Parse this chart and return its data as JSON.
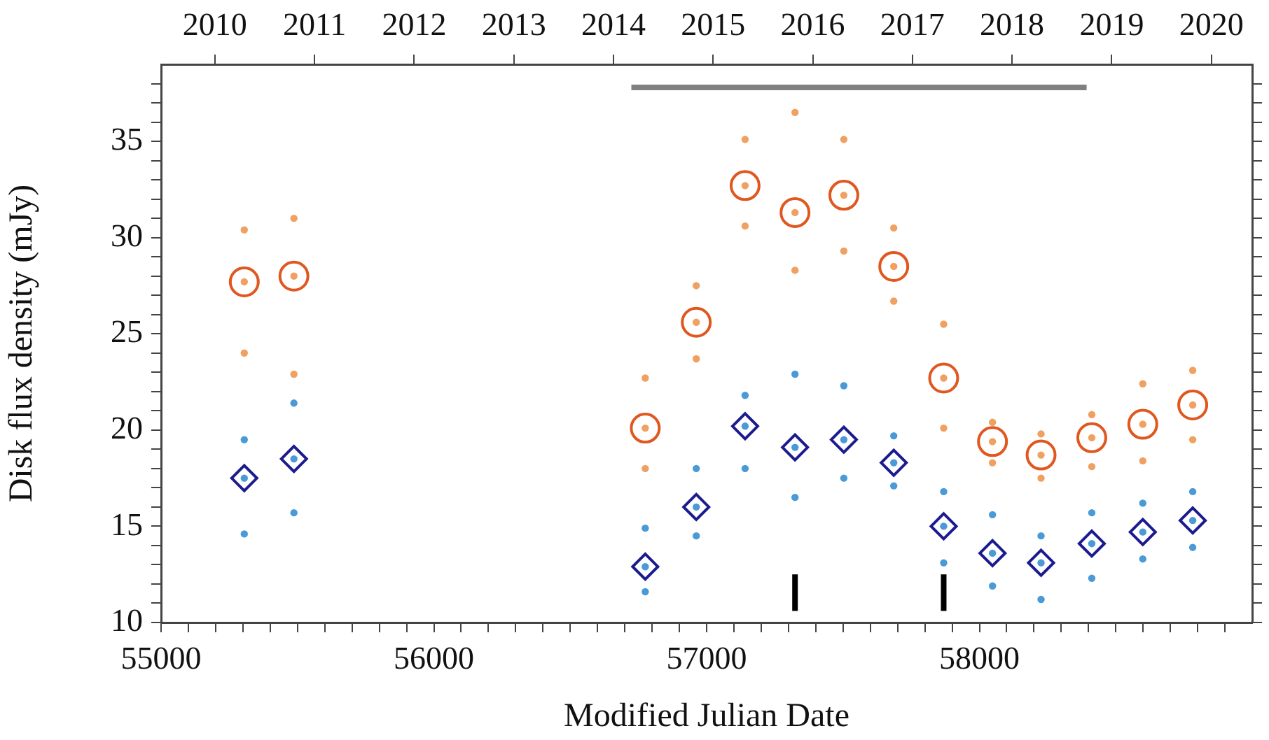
{
  "chart_data": {
    "type": "scatter",
    "xlabel": "Modified Julian Date",
    "ylabel": "Disk flux density (mJy)",
    "grid": false,
    "legend": false,
    "xlim": [
      55000,
      59000
    ],
    "xticks": [
      55000,
      {
        "value": 55100,
        "label": null
      },
      {
        "value": 55200,
        "label": null
      },
      {
        "value": 55300,
        "label": null
      },
      {
        "value": 55400,
        "label": null
      },
      {
        "value": 55500,
        "label": null
      },
      {
        "value": 55600,
        "label": null
      },
      {
        "value": 55700,
        "label": null
      },
      {
        "value": 55800,
        "label": null
      },
      {
        "value": 55900,
        "label": null
      },
      56000,
      {
        "value": 56100,
        "label": null
      },
      {
        "value": 56200,
        "label": null
      },
      {
        "value": 56300,
        "label": null
      },
      {
        "value": 56400,
        "label": null
      },
      {
        "value": 56500,
        "label": null
      },
      {
        "value": 56600,
        "label": null
      },
      {
        "value": 56700,
        "label": null
      },
      {
        "value": 56800,
        "label": null
      },
      {
        "value": 56900,
        "label": null
      },
      57000,
      {
        "value": 57100,
        "label": null
      },
      {
        "value": 57200,
        "label": null
      },
      {
        "value": 57300,
        "label": null
      },
      {
        "value": 57400,
        "label": null
      },
      {
        "value": 57500,
        "label": null
      },
      {
        "value": 57600,
        "label": null
      },
      {
        "value": 57700,
        "label": null
      },
      {
        "value": 57800,
        "label": null
      },
      {
        "value": 57900,
        "label": null
      },
      58000,
      {
        "value": 58100,
        "label": null
      },
      {
        "value": 58200,
        "label": null
      },
      {
        "value": 58300,
        "label": null
      },
      {
        "value": 58400,
        "label": null
      },
      {
        "value": 58500,
        "label": null
      },
      {
        "value": 58600,
        "label": null
      },
      {
        "value": 58700,
        "label": null
      },
      {
        "value": 58800,
        "label": null
      },
      {
        "value": 58900,
        "label": null
      }
    ],
    "x2lim": [
      2009.46,
      2020.41
    ],
    "x2ticks": [
      2010,
      2011,
      2012,
      2013,
      2014,
      2015,
      2016,
      2017,
      2018,
      2019,
      2020
    ],
    "ylim": [
      10,
      39
    ],
    "yticks": [
      10,
      {
        "value": 11,
        "label": null
      },
      {
        "value": 12,
        "label": null
      },
      {
        "value": 13,
        "label": null
      },
      {
        "value": 14,
        "label": null
      },
      15,
      {
        "value": 16,
        "label": null
      },
      {
        "value": 17,
        "label": null
      },
      {
        "value": 18,
        "label": null
      },
      {
        "value": 19,
        "label": null
      },
      20,
      {
        "value": 21,
        "label": null
      },
      {
        "value": 22,
        "label": null
      },
      {
        "value": 23,
        "label": null
      },
      {
        "value": 24,
        "label": null
      },
      25,
      {
        "value": 26,
        "label": null
      },
      {
        "value": 27,
        "label": null
      },
      {
        "value": 28,
        "label": null
      },
      {
        "value": 29,
        "label": null
      },
      30,
      {
        "value": 31,
        "label": null
      },
      {
        "value": 32,
        "label": null
      },
      {
        "value": 33,
        "label": null
      },
      {
        "value": 34,
        "label": null
      },
      35,
      {
        "value": 36,
        "label": null
      },
      {
        "value": 37,
        "label": null
      },
      {
        "value": 38,
        "label": null
      }
    ],
    "series": [
      {
        "marker": "circle",
        "color": "#f0a060",
        "x": [
          55305,
          55305,
          55305,
          55487,
          55487,
          55487,
          56775,
          56775,
          56775,
          56962,
          56962,
          56962,
          57141,
          57141,
          57141,
          57324,
          57324,
          57324,
          57503,
          57503,
          57503,
          57686,
          57686,
          57686,
          57869,
          57869,
          57869,
          58048,
          58048,
          58048,
          58226,
          58226,
          58226,
          58412,
          58412,
          58412,
          58599,
          58599,
          58599,
          58782,
          58782,
          58782
        ],
        "values": [
          30.4,
          27.7,
          24.0,
          31.0,
          28.0,
          22.9,
          22.7,
          20.1,
          18.0,
          27.5,
          25.6,
          23.7,
          35.1,
          32.7,
          30.6,
          36.5,
          31.3,
          28.3,
          35.1,
          32.2,
          29.3,
          30.5,
          28.5,
          26.7,
          25.5,
          22.7,
          20.1,
          20.4,
          19.4,
          18.3,
          19.8,
          18.7,
          17.5,
          20.8,
          19.6,
          18.1,
          22.4,
          20.3,
          18.4,
          23.1,
          21.3,
          19.5
        ]
      },
      {
        "marker": "circle",
        "color": "#4a9ad8",
        "x": [
          55305,
          55305,
          55305,
          55487,
          55487,
          55487,
          56775,
          56775,
          56775,
          56962,
          56962,
          56962,
          57141,
          57141,
          57141,
          57324,
          57324,
          57324,
          57503,
          57503,
          57503,
          57686,
          57686,
          57686,
          57869,
          57869,
          57869,
          58048,
          58048,
          58048,
          58226,
          58226,
          58226,
          58412,
          58412,
          58412,
          58599,
          58599,
          58599,
          58782,
          58782,
          58782
        ],
        "values": [
          19.5,
          17.5,
          14.6,
          21.4,
          18.5,
          15.7,
          14.9,
          12.9,
          11.6,
          18.0,
          16.0,
          14.5,
          21.8,
          20.2,
          18.0,
          22.9,
          19.1,
          16.5,
          22.3,
          19.5,
          17.5,
          19.7,
          18.3,
          17.1,
          16.8,
          15.0,
          13.1,
          15.6,
          13.6,
          11.9,
          14.5,
          13.1,
          11.2,
          15.7,
          14.1,
          12.3,
          16.2,
          14.7,
          13.3,
          16.8,
          15.3,
          13.9
        ]
      },
      {
        "marker": "circle",
        "color": "#e0571f",
        "x": [
          55305,
          55487,
          56775,
          56962,
          57141,
          57324,
          57503,
          57686,
          57869,
          58048,
          58226,
          58412,
          58599,
          58782
        ],
        "values": [
          27.7,
          28.0,
          20.1,
          25.6,
          32.7,
          31.3,
          32.2,
          28.5,
          22.7,
          19.4,
          18.7,
          19.6,
          20.3,
          21.3
        ]
      },
      {
        "marker": "diamond",
        "color": "#1b1b8f",
        "x": [
          55305,
          55487,
          56775,
          56962,
          57141,
          57324,
          57503,
          57686,
          57869,
          58048,
          58226,
          58412,
          58599,
          58782
        ],
        "values": [
          17.5,
          18.5,
          12.9,
          16.0,
          20.2,
          19.1,
          19.5,
          18.3,
          15.0,
          13.6,
          13.1,
          14.1,
          14.7,
          15.3
        ]
      },
      {
        "type": "line",
        "marker": "none",
        "color": "#808080",
        "x": [
          56724,
          58393
        ],
        "values": [
          37.8,
          37.8
        ]
      },
      {
        "type": "line",
        "marker": "none",
        "color": "#000000",
        "x": [
          57324,
          57324
        ],
        "values": [
          10.6,
          12.5
        ]
      },
      {
        "type": "line",
        "marker": "none",
        "color": "#000000",
        "x": [
          57869,
          57869
        ],
        "values": [
          10.6,
          12.5
        ]
      }
    ]
  }
}
